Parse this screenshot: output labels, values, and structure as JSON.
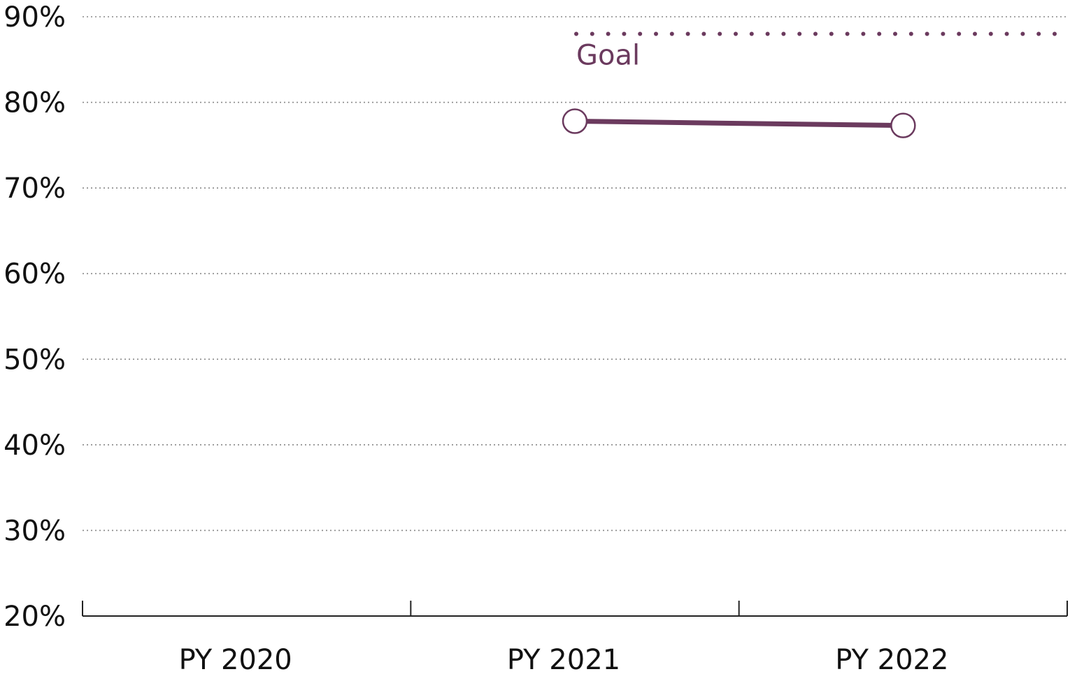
{
  "chart_data": {
    "type": "line",
    "categories": [
      "PY 2020",
      "PY 2021",
      "PY 2022"
    ],
    "series": [
      {
        "values": [
          null,
          77.8,
          77.3
        ]
      }
    ],
    "y_ticks": [
      "20%",
      "30%",
      "40%",
      "50%",
      "60%",
      "70%",
      "80%",
      "90%"
    ],
    "ylim": [
      20,
      90
    ],
    "grid": true,
    "goal": {
      "label": "Goal",
      "value": 88,
      "start_category": 1.5
    },
    "colors": {
      "series": "#6b3a5e",
      "goal": "#6b3a5e",
      "marker_fill": "#ffffff"
    }
  }
}
